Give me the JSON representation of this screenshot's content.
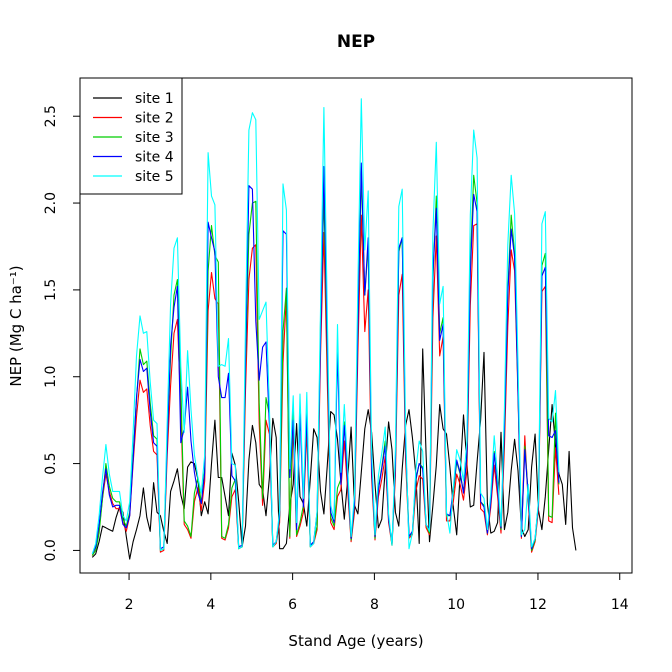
{
  "chart_data": {
    "type": "line",
    "title": "NEP",
    "xlabel": "Stand Age (years)",
    "ylabel": "NEP (Mg C ha⁻¹)",
    "xlim": [
      0.8,
      14.3
    ],
    "ylim": [
      -0.13,
      2.72
    ],
    "xticks": [
      2,
      4,
      6,
      8,
      10,
      12,
      14
    ],
    "yticks": [
      0.0,
      0.5,
      1.0,
      1.5,
      2.0,
      2.5
    ],
    "ytick_labels": [
      "0.0",
      "0.5",
      "1.0",
      "1.5",
      "2.0",
      "2.5"
    ],
    "grid": false,
    "legend_position": "top-left",
    "x_start": 1.1,
    "x_step": 0.0833,
    "series": [
      {
        "name": "site 1",
        "color": "#000000",
        "values": [
          -0.04,
          -0.02,
          0.05,
          0.14,
          0.13,
          0.12,
          0.11,
          0.19,
          0.25,
          0.22,
          0.08,
          -0.05,
          0.05,
          0.12,
          0.2,
          0.36,
          0.19,
          0.11,
          0.39,
          0.22,
          0.2,
          0.11,
          0.04,
          0.34,
          0.4,
          0.47,
          0.32,
          0.24,
          0.48,
          0.51,
          0.5,
          0.41,
          0.2,
          0.28,
          0.21,
          0.5,
          0.75,
          0.42,
          0.42,
          0.31,
          0.2,
          0.56,
          0.49,
          0.28,
          0.02,
          0.14,
          0.52,
          0.72,
          0.62,
          0.38,
          0.35,
          0.2,
          0.42,
          0.76,
          0.65,
          0.01,
          0.01,
          0.04,
          0.26,
          0.38,
          0.73,
          0.31,
          0.27,
          0.14,
          0.41,
          0.7,
          0.65,
          0.34,
          0.21,
          0.49,
          0.8,
          0.78,
          0.64,
          0.39,
          0.18,
          0.41,
          0.71,
          0.26,
          0.21,
          0.45,
          0.7,
          0.81,
          0.68,
          0.38,
          0.13,
          0.18,
          0.47,
          0.74,
          0.58,
          0.22,
          0.14,
          0.47,
          0.72,
          0.81,
          0.65,
          0.44,
          0.04,
          1.16,
          0.55,
          0.05,
          0.26,
          0.49,
          0.84,
          0.7,
          0.67,
          0.48,
          0.25,
          0.09,
          0.43,
          0.78,
          0.5,
          0.25,
          0.26,
          0.51,
          0.75,
          1.14,
          0.27,
          0.1,
          0.11,
          0.16,
          0.68,
          0.12,
          0.22,
          0.46,
          0.64,
          0.46,
          0.13,
          0.08,
          0.12,
          0.48,
          0.67,
          0.23,
          0.12,
          0.31,
          0.58,
          0.84,
          0.6,
          0.44,
          0.38,
          0.15,
          0.57,
          0.13,
          0.0
        ]
      },
      {
        "name": "site 2",
        "color": "#ff0000",
        "values": [
          -0.03,
          0.02,
          0.12,
          0.3,
          0.44,
          0.34,
          0.27,
          0.24,
          0.24,
          0.16,
          0.11,
          0.2,
          0.5,
          0.77,
          0.98,
          0.91,
          0.93,
          0.72,
          0.57,
          0.55,
          -0.01,
          0.0,
          0.55,
          0.95,
          1.25,
          1.33,
          0.82,
          0.15,
          0.12,
          0.07,
          0.28,
          0.36,
          0.23,
          0.4,
          1.38,
          1.6,
          1.45,
          1.42,
          0.07,
          0.06,
          0.13,
          0.31,
          0.35,
          0.01,
          0.02,
          0.92,
          1.56,
          1.74,
          1.76,
          0.73,
          0.26,
          0.75,
          0.67,
          0.02,
          0.04,
          0.16,
          1.08,
          1.47,
          0.07,
          0.72,
          0.08,
          0.14,
          0.22,
          0.69,
          0.02,
          0.04,
          0.12,
          1.12,
          1.83,
          0.97,
          0.16,
          0.12,
          0.31,
          0.35,
          0.63,
          0.34,
          0.05,
          0.22,
          1.14,
          1.93,
          1.26,
          1.5,
          0.42,
          0.06,
          0.31,
          0.41,
          0.54,
          0.16,
          0.03,
          0.43,
          1.47,
          1.59,
          0.52,
          0.07,
          0.09,
          0.34,
          0.43,
          0.41,
          0.13,
          0.09,
          1.34,
          1.81,
          1.12,
          1.23,
          0.17,
          0.17,
          0.28,
          0.44,
          0.38,
          0.29,
          0.46,
          1.41,
          1.87,
          1.88,
          0.24,
          0.22,
          0.09,
          0.25,
          0.49,
          0.31,
          0.1,
          0.59,
          1.29,
          1.73,
          1.61,
          0.89,
          0.07,
          0.66,
          0.28,
          -0.01,
          0.05,
          0.24,
          1.49,
          1.52,
          0.17,
          0.16,
          0.59,
          0.32
        ]
      },
      {
        "name": "site 3",
        "color": "#00cd00",
        "values": [
          -0.03,
          0.0,
          0.1,
          0.3,
          0.5,
          0.37,
          0.3,
          0.28,
          0.28,
          0.18,
          0.14,
          0.22,
          0.55,
          0.87,
          1.16,
          1.07,
          1.09,
          0.85,
          0.66,
          0.64,
          0.0,
          0.01,
          0.64,
          1.11,
          1.47,
          1.56,
          0.96,
          0.17,
          0.14,
          0.08,
          0.33,
          0.42,
          0.27,
          0.47,
          1.61,
          1.87,
          1.7,
          1.66,
          0.08,
          0.07,
          0.15,
          0.36,
          0.41,
          0.01,
          0.02,
          1.07,
          1.82,
          2.0,
          2.01,
          0.85,
          0.3,
          0.88,
          0.78,
          0.02,
          0.05,
          0.19,
          1.26,
          1.51,
          0.08,
          0.84,
          0.09,
          0.16,
          0.26,
          0.81,
          0.02,
          0.05,
          0.14,
          1.31,
          2.04,
          1.13,
          0.19,
          0.14,
          0.36,
          0.41,
          0.74,
          0.4,
          0.06,
          0.26,
          1.33,
          2.16,
          1.47,
          1.75,
          0.49,
          0.07,
          0.36,
          0.48,
          0.63,
          0.19,
          0.03,
          0.5,
          1.72,
          1.8,
          0.61,
          0.08,
          0.1,
          0.4,
          0.5,
          0.48,
          0.15,
          0.1,
          1.56,
          2.04,
          1.25,
          1.34,
          0.2,
          0.2,
          0.33,
          0.51,
          0.44,
          0.34,
          0.54,
          1.65,
          2.16,
          2.0,
          0.28,
          0.26,
          0.1,
          0.29,
          0.57,
          0.36,
          0.12,
          0.69,
          1.5,
          1.93,
          1.71,
          0.93,
          0.08,
          0.6,
          0.33,
          0.0,
          0.06,
          0.28,
          1.64,
          1.71,
          0.2,
          0.19,
          0.79,
          0.38
        ]
      },
      {
        "name": "site 4",
        "color": "#0000ff",
        "values": [
          -0.02,
          0.02,
          0.15,
          0.33,
          0.47,
          0.32,
          0.25,
          0.26,
          0.26,
          0.15,
          0.13,
          0.2,
          0.52,
          0.88,
          1.1,
          1.03,
          1.05,
          0.8,
          0.62,
          0.6,
          0.01,
          0.02,
          0.62,
          1.18,
          1.4,
          1.52,
          0.62,
          0.7,
          0.94,
          0.63,
          0.45,
          0.33,
          0.27,
          0.45,
          1.89,
          1.8,
          1.72,
          1.0,
          0.88,
          0.88,
          1.02,
          0.43,
          0.4,
          0.02,
          0.03,
          1.1,
          2.1,
          2.08,
          1.32,
          0.98,
          1.17,
          1.2,
          0.72,
          0.03,
          0.05,
          0.2,
          1.84,
          1.82,
          0.42,
          0.75,
          0.12,
          0.79,
          0.25,
          0.78,
          0.03,
          0.05,
          0.22,
          1.2,
          2.21,
          1.18,
          0.22,
          0.16,
          1.15,
          0.38,
          0.72,
          0.4,
          0.07,
          0.27,
          1.31,
          2.23,
          1.47,
          1.8,
          0.48,
          0.08,
          0.35,
          0.47,
          0.6,
          0.18,
          0.04,
          0.5,
          1.74,
          1.8,
          0.61,
          0.08,
          0.11,
          0.41,
          0.5,
          0.47,
          0.15,
          0.12,
          1.6,
          1.97,
          1.21,
          1.3,
          0.21,
          0.2,
          0.35,
          0.52,
          0.45,
          0.33,
          0.55,
          1.6,
          2.05,
          1.95,
          0.28,
          0.25,
          0.1,
          0.28,
          0.56,
          0.35,
          0.13,
          0.7,
          1.48,
          1.85,
          1.69,
          0.92,
          0.08,
          0.58,
          0.32,
          0.01,
          0.07,
          0.27,
          1.58,
          1.63,
          0.66,
          0.65,
          0.69,
          0.39
        ]
      },
      {
        "name": "site 5",
        "color": "#00ffff",
        "values": [
          -0.02,
          0.04,
          0.2,
          0.42,
          0.61,
          0.44,
          0.34,
          0.34,
          0.34,
          0.2,
          0.17,
          0.28,
          0.68,
          1.12,
          1.35,
          1.25,
          1.26,
          0.97,
          0.75,
          0.73,
          0.0,
          0.01,
          0.74,
          1.42,
          1.74,
          1.8,
          1.06,
          0.68,
          1.15,
          0.81,
          0.55,
          0.42,
          0.33,
          0.55,
          2.29,
          2.04,
          1.99,
          1.06,
          1.07,
          1.06,
          1.22,
          0.5,
          0.49,
          0.01,
          0.02,
          1.3,
          2.42,
          2.52,
          2.48,
          1.33,
          1.38,
          1.43,
          0.82,
          0.02,
          0.05,
          0.23,
          2.11,
          1.96,
          0.47,
          0.89,
          0.16,
          0.9,
          0.3,
          0.91,
          0.02,
          0.04,
          0.23,
          1.38,
          2.55,
          1.36,
          0.26,
          0.18,
          1.3,
          0.45,
          0.84,
          0.47,
          0.08,
          0.32,
          1.54,
          2.6,
          1.73,
          2.07,
          0.58,
          0.09,
          0.43,
          0.56,
          0.71,
          0.21,
          0.03,
          0.58,
          1.98,
          2.08,
          0.7,
          0.01,
          0.1,
          0.46,
          0.63,
          0.57,
          0.15,
          0.11,
          1.83,
          2.35,
          1.42,
          1.52,
          0.22,
          0.1,
          0.36,
          0.58,
          0.52,
          0.4,
          0.63,
          1.93,
          2.42,
          2.26,
          0.33,
          0.3,
          0.12,
          0.33,
          0.66,
          0.42,
          0.14,
          0.81,
          1.76,
          2.16,
          1.94,
          1.08,
          0.09,
          0.12,
          0.38,
          0.02,
          0.07,
          0.29,
          1.88,
          1.95,
          0.76,
          0.74,
          0.92,
          0.45
        ]
      }
    ]
  }
}
